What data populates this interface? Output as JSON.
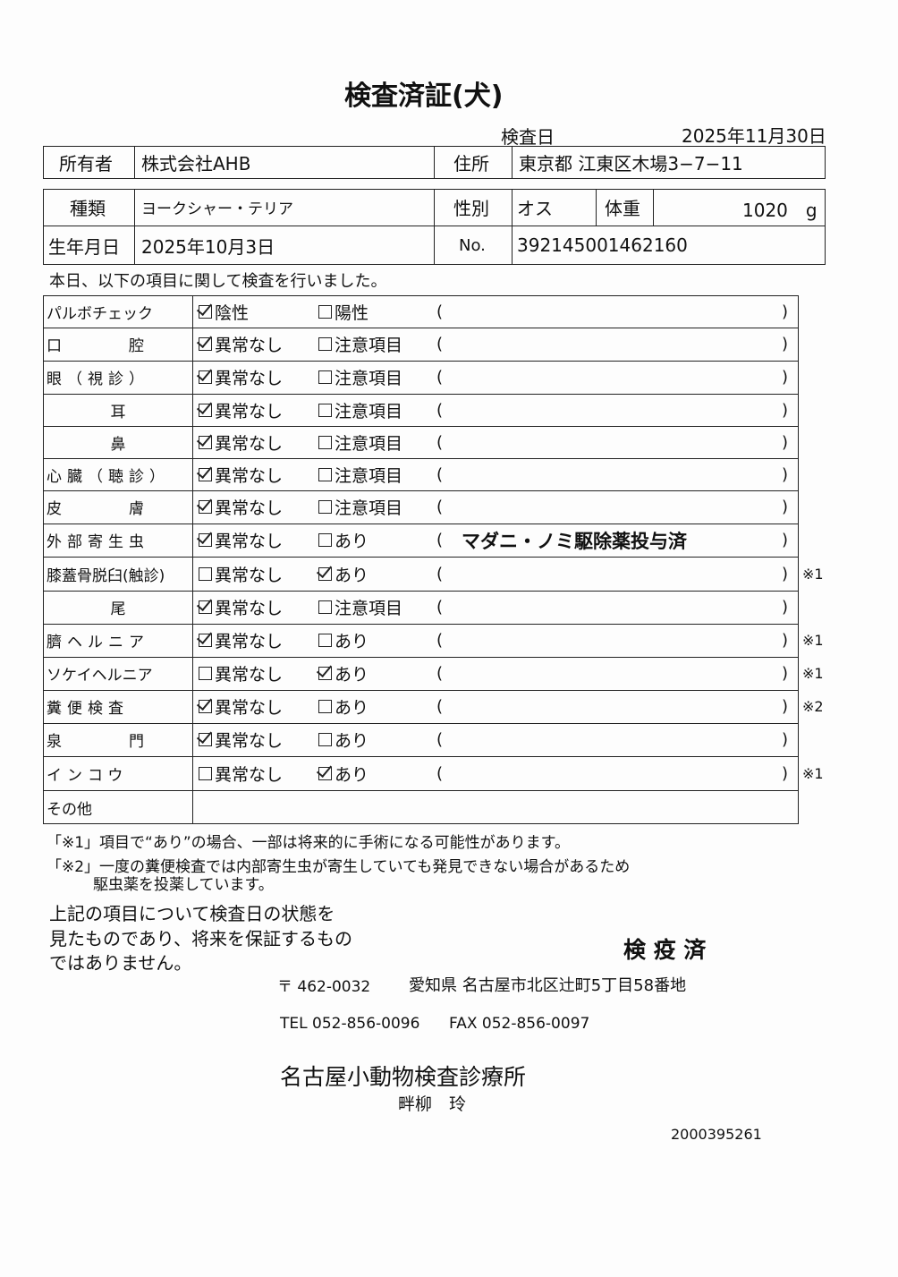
{
  "title": "検査済証(犬)",
  "exam_date_label": "検査日",
  "exam_date": "2025年11月30日",
  "owner_label": "所有者",
  "owner": "株式会社AHB",
  "address_label": "住所",
  "address": "東京都 江東区木場3−7−11",
  "breed_label": "種類",
  "breed": "ヨークシャー・テリア",
  "sex_label": "性別",
  "sex": "オス",
  "weight_label": "体重",
  "weight": "1020　g",
  "birth_label": "生年月日",
  "birth": "2025年10月3日",
  "no_label": "No.",
  "no": "392145001462160",
  "intro": "本日、以下の項目に関して検査を行いました。",
  "rows": [
    {
      "label": "パルボチェック",
      "opt1": "陰性",
      "opt2": "陽性",
      "c1": true,
      "c2": false,
      "note": "",
      "mark": ""
    },
    {
      "label": "口　　　腔",
      "opt1": "異常なし",
      "opt2": "注意項目",
      "c1": true,
      "c2": false,
      "note": "",
      "mark": ""
    },
    {
      "label": "眼（視診）",
      "opt1": "異常なし",
      "opt2": "注意項目",
      "c1": true,
      "c2": false,
      "note": "",
      "mark": ""
    },
    {
      "label": "耳",
      "opt1": "異常なし",
      "opt2": "注意項目",
      "c1": true,
      "c2": false,
      "note": "",
      "mark": ""
    },
    {
      "label": "鼻",
      "opt1": "異常なし",
      "opt2": "注意項目",
      "c1": true,
      "c2": false,
      "note": "",
      "mark": ""
    },
    {
      "label": "心臓（聴診）",
      "opt1": "異常なし",
      "opt2": "注意項目",
      "c1": true,
      "c2": false,
      "note": "",
      "mark": ""
    },
    {
      "label": "皮　　　膚",
      "opt1": "異常なし",
      "opt2": "注意項目",
      "c1": true,
      "c2": false,
      "note": "",
      "mark": ""
    },
    {
      "label": "外部寄生虫",
      "opt1": "異常なし",
      "opt2": "あり",
      "c1": true,
      "c2": false,
      "note": "マダニ・ノミ駆除薬投与済",
      "mark": ""
    },
    {
      "label": "膝蓋骨脱臼(触診)",
      "opt1": "異常なし",
      "opt2": "あり",
      "c1": false,
      "c2": true,
      "note": "",
      "mark": "※1"
    },
    {
      "label": "尾",
      "opt1": "異常なし",
      "opt2": "注意項目",
      "c1": true,
      "c2": false,
      "note": "",
      "mark": ""
    },
    {
      "label": "臍ヘルニア",
      "opt1": "異常なし",
      "opt2": "あり",
      "c1": true,
      "c2": false,
      "note": "",
      "mark": "※1"
    },
    {
      "label": "ソケイヘルニア",
      "opt1": "異常なし",
      "opt2": "あり",
      "c1": false,
      "c2": true,
      "note": "",
      "mark": "※1"
    },
    {
      "label": "糞便検査",
      "opt1": "異常なし",
      "opt2": "あり",
      "c1": true,
      "c2": false,
      "note": "",
      "mark": "※2"
    },
    {
      "label": "泉　　　門",
      "opt1": "異常なし",
      "opt2": "あり",
      "c1": true,
      "c2": false,
      "note": "",
      "mark": ""
    },
    {
      "label": "インコウ",
      "opt1": "異常なし",
      "opt2": "あり",
      "c1": false,
      "c2": true,
      "note": "",
      "mark": "※1"
    }
  ],
  "other_label": "その他",
  "footnote1": "「※1」項目で“あり”の場合、一部は将来的に手術になる可能性があります。",
  "footnote2a": "「※2」一度の糞便検査では内部寄生虫が寄生していても発見できない場合があるため",
  "footnote2b": "駆虫薬を投薬しています。",
  "disclaimer": [
    "上記の項目について検査日の状態を",
    "見たものであり、将来を保証するもの",
    "ではありません。"
  ],
  "stamp": "検 疫 済",
  "postal": "〒 462-0032",
  "clinic_address": "愛知県 名古屋市北区辻町5丁目58番地",
  "tel": "TEL 052-856-0096",
  "fax": "FAX 052-856-0097",
  "clinic_name": "名古屋小動物検査診療所",
  "vet_name": "畔柳　玲",
  "doc_number": "2000395261"
}
